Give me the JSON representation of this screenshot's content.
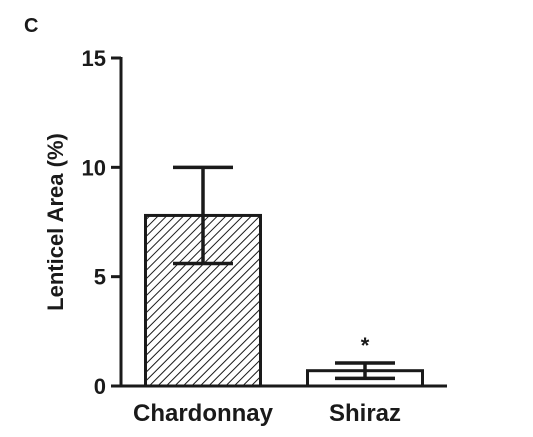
{
  "panel_label": "C",
  "chart_data": {
    "type": "bar",
    "categories": [
      "Chardonnay",
      "Shiraz"
    ],
    "values": [
      7.8,
      0.7
    ],
    "error_low": [
      5.6,
      0.35
    ],
    "error_high": [
      10.0,
      1.05
    ],
    "significance": [
      "",
      "*"
    ],
    "ylabel": "Lenticel Area (%)",
    "xlabel": "",
    "ylim": [
      0,
      15
    ],
    "yticks": [
      0,
      5,
      10,
      15
    ],
    "fills": [
      "hatched",
      "white"
    ],
    "grid": false,
    "colors": {
      "ink": "#1a1a1a",
      "background": "#ffffff",
      "hatch_fill": "#ffffff"
    }
  }
}
